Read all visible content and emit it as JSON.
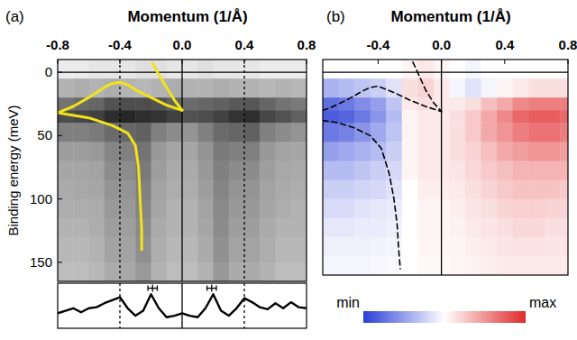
{
  "chart_data": [
    {
      "type": "heatmap",
      "title": "(a)",
      "xlabel": "Momentum (1/Å)",
      "ylabel": "Binding energy (meV)",
      "xlim": [
        -0.8,
        0.8
      ],
      "ylim": [
        165,
        -10
      ],
      "xticks": [
        -0.8,
        -0.4,
        {
          "value": 0,
          "label": "0.0"
        },
        0.4,
        0.8
      ],
      "yticks": [
        0,
        50,
        100,
        150
      ],
      "grid": false,
      "colors": [
        "#ffffff",
        "#000000"
      ],
      "clim": [
        0,
        1
      ],
      "x_edges": [
        -0.8,
        -0.7,
        -0.6,
        -0.5,
        -0.4,
        -0.3,
        -0.2,
        -0.1,
        0.0,
        0.1,
        0.2,
        0.3,
        0.4,
        0.5,
        0.6,
        0.7,
        0.8
      ],
      "y_edges": [
        -10,
        5,
        20,
        30,
        40,
        55,
        70,
        85,
        100,
        115,
        130,
        150,
        165
      ],
      "cells": [
        [
          0.08,
          0.08,
          0.1,
          0.1,
          0.1,
          0.12,
          0.12,
          0.1,
          0.1,
          0.12,
          0.1,
          0.1,
          0.1,
          0.08,
          0.08,
          0.08
        ],
        [
          0.3,
          0.32,
          0.3,
          0.32,
          0.3,
          0.28,
          0.3,
          0.32,
          0.3,
          0.3,
          0.32,
          0.3,
          0.3,
          0.28,
          0.3,
          0.28
        ],
        [
          0.55,
          0.58,
          0.6,
          0.68,
          0.7,
          0.7,
          0.68,
          0.62,
          0.58,
          0.6,
          0.62,
          0.65,
          0.66,
          0.6,
          0.55,
          0.52
        ],
        [
          0.7,
          0.72,
          0.75,
          0.82,
          0.85,
          0.82,
          0.8,
          0.75,
          0.68,
          0.7,
          0.74,
          0.8,
          0.82,
          0.72,
          0.68,
          0.62
        ],
        [
          0.5,
          0.5,
          0.52,
          0.58,
          0.6,
          0.62,
          0.5,
          0.45,
          0.42,
          0.5,
          0.58,
          0.6,
          0.62,
          0.5,
          0.45,
          0.42
        ],
        [
          0.38,
          0.38,
          0.4,
          0.48,
          0.5,
          0.55,
          0.4,
          0.35,
          0.35,
          0.42,
          0.52,
          0.5,
          0.5,
          0.4,
          0.36,
          0.35
        ],
        [
          0.35,
          0.35,
          0.36,
          0.45,
          0.45,
          0.52,
          0.38,
          0.33,
          0.33,
          0.4,
          0.5,
          0.45,
          0.45,
          0.38,
          0.34,
          0.33
        ],
        [
          0.33,
          0.34,
          0.35,
          0.42,
          0.42,
          0.5,
          0.36,
          0.32,
          0.32,
          0.38,
          0.48,
          0.42,
          0.42,
          0.36,
          0.33,
          0.32
        ],
        [
          0.32,
          0.32,
          0.33,
          0.4,
          0.4,
          0.48,
          0.35,
          0.3,
          0.3,
          0.36,
          0.46,
          0.4,
          0.4,
          0.35,
          0.32,
          0.3
        ],
        [
          0.3,
          0.3,
          0.32,
          0.38,
          0.38,
          0.46,
          0.33,
          0.3,
          0.3,
          0.35,
          0.45,
          0.38,
          0.38,
          0.33,
          0.3,
          0.3
        ],
        [
          0.28,
          0.28,
          0.3,
          0.36,
          0.36,
          0.44,
          0.32,
          0.28,
          0.28,
          0.33,
          0.43,
          0.36,
          0.36,
          0.32,
          0.28,
          0.28
        ],
        [
          0.26,
          0.26,
          0.28,
          0.33,
          0.34,
          0.4,
          0.3,
          0.26,
          0.26,
          0.3,
          0.4,
          0.33,
          0.33,
          0.3,
          0.26,
          0.26
        ]
      ],
      "vlines": [
        {
          "value": -0.4,
          "line_style": "dashed"
        },
        {
          "value": 0,
          "line_style": "solid"
        },
        {
          "value": 0.4,
          "line_style": "dashed"
        }
      ],
      "hlines": [
        {
          "value": 0,
          "line_style": "solid"
        }
      ],
      "curves": [
        {
          "color": "#f2e318",
          "line_style": "solid",
          "x": [
            -0.8,
            -0.7,
            -0.6,
            -0.5,
            -0.45,
            -0.4,
            -0.35,
            -0.3,
            -0.2,
            -0.1,
            0.0
          ],
          "y": [
            32,
            27,
            20,
            12,
            9,
            8,
            10,
            14,
            20,
            26,
            30
          ]
        },
        {
          "color": "#f2e318",
          "line_style": "solid",
          "x": [
            -0.8,
            -0.6,
            -0.45,
            -0.35,
            -0.3,
            -0.28,
            -0.27,
            -0.26,
            -0.26
          ],
          "y": [
            32,
            36,
            42,
            48,
            58,
            75,
            100,
            125,
            140
          ]
        },
        {
          "color": "#f2e318",
          "line_style": "solid",
          "x": [
            -0.19,
            -0.15,
            -0.1,
            -0.05,
            0.0
          ],
          "y": [
            -7,
            2,
            12,
            22,
            30
          ]
        }
      ]
    },
    {
      "type": "line",
      "xlim": [
        -0.8,
        0.8
      ],
      "ylim": [
        0.2,
        1.1
      ],
      "tick_labels": false,
      "grid": false,
      "color": "#000000",
      "x": [
        -0.8,
        -0.75,
        -0.7,
        -0.65,
        -0.6,
        -0.55,
        -0.5,
        -0.45,
        -0.4,
        -0.35,
        -0.3,
        -0.25,
        -0.2,
        -0.15,
        -0.1,
        -0.05,
        0.0,
        0.05,
        0.1,
        0.15,
        0.2,
        0.25,
        0.3,
        0.35,
        0.4,
        0.45,
        0.5,
        0.55,
        0.6,
        0.65,
        0.7,
        0.75,
        0.8
      ],
      "values": [
        0.5,
        0.55,
        0.6,
        0.52,
        0.6,
        0.62,
        0.7,
        0.76,
        0.82,
        0.6,
        0.45,
        0.55,
        0.88,
        0.6,
        0.42,
        0.45,
        0.5,
        0.45,
        0.42,
        0.6,
        0.88,
        0.55,
        0.45,
        0.6,
        0.8,
        0.72,
        0.62,
        0.58,
        0.7,
        0.6,
        0.72,
        0.62,
        0.6
      ],
      "peaks": {
        "x": [
          -0.19,
          0.19
        ],
        "values": [
          1.0,
          1.0
        ],
        "errors": [
          0.03,
          0.03
        ]
      },
      "vlines": [
        {
          "value": -0.4,
          "line_style": "dashed"
        },
        {
          "value": 0,
          "line_style": "solid"
        },
        {
          "value": 0.4,
          "line_style": "dashed"
        }
      ]
    },
    {
      "type": "heatmap",
      "title": "(b)",
      "xlabel": "Momentum (1/Å)",
      "xlim": [
        -0.75,
        0.8
      ],
      "ylim": [
        160,
        -10
      ],
      "xticks": [
        -0.4,
        {
          "value": 0,
          "label": "0.0"
        },
        0.4,
        0.8
      ],
      "tick_labels": "x",
      "grid": false,
      "colors": [
        "#2b3fd6",
        "#ffffff",
        "#e0282a"
      ],
      "clim": [
        -1,
        1
      ],
      "colorbar_ticks": [
        {
          "value": -1,
          "label": "min"
        },
        {
          "value": 1,
          "label": "max"
        }
      ],
      "x_edges": [
        -0.75,
        -0.65,
        -0.55,
        -0.45,
        -0.35,
        -0.25,
        -0.15,
        -0.05,
        0.05,
        0.15,
        0.25,
        0.35,
        0.45,
        0.55,
        0.65,
        0.75,
        0.8
      ],
      "y_edges": [
        -10,
        5,
        20,
        30,
        40,
        55,
        70,
        85,
        100,
        115,
        130,
        145,
        160
      ],
      "cells": [
        [
          0,
          0,
          0,
          0,
          0,
          0.05,
          0.1,
          0.05,
          0,
          -0.05,
          0,
          0,
          0,
          0,
          0,
          0
        ],
        [
          -0.4,
          -0.35,
          -0.3,
          -0.25,
          -0.15,
          0.15,
          0.2,
          0.1,
          -0.05,
          -0.15,
          -0.05,
          0.05,
          0.1,
          0.15,
          0.15,
          0.15
        ],
        [
          -0.75,
          -0.7,
          -0.6,
          -0.5,
          -0.3,
          0.1,
          0.15,
          0.1,
          0.1,
          0.15,
          0.3,
          0.4,
          0.55,
          0.6,
          0.6,
          0.6
        ],
        [
          -0.85,
          -0.8,
          -0.7,
          -0.55,
          -0.35,
          0.05,
          0.1,
          0.1,
          0.15,
          0.25,
          0.4,
          0.55,
          0.7,
          0.75,
          0.75,
          0.7
        ],
        [
          -0.7,
          -0.65,
          -0.55,
          -0.45,
          -0.3,
          0.05,
          0.1,
          0.1,
          0.15,
          0.25,
          0.4,
          0.5,
          0.6,
          0.65,
          0.65,
          0.6
        ],
        [
          -0.5,
          -0.45,
          -0.4,
          -0.35,
          -0.25,
          0.05,
          0.1,
          0.1,
          0.15,
          0.2,
          0.3,
          0.4,
          0.45,
          0.5,
          0.5,
          0.45
        ],
        [
          -0.35,
          -0.35,
          -0.3,
          -0.25,
          -0.2,
          0.05,
          0.1,
          0.1,
          0.12,
          0.18,
          0.25,
          0.3,
          0.35,
          0.35,
          0.35,
          0.35
        ],
        [
          -0.25,
          -0.25,
          -0.22,
          -0.2,
          -0.15,
          0,
          0.08,
          0.08,
          0.1,
          0.15,
          0.2,
          0.25,
          0.28,
          0.28,
          0.28,
          0.25
        ],
        [
          -0.18,
          -0.18,
          -0.15,
          -0.12,
          -0.1,
          0,
          0.05,
          0.05,
          0.08,
          0.12,
          0.15,
          0.2,
          0.22,
          0.22,
          0.2,
          0.2
        ],
        [
          -0.12,
          -0.12,
          -0.1,
          -0.1,
          -0.08,
          0,
          0.05,
          0.05,
          0.06,
          0.1,
          0.12,
          0.15,
          0.18,
          0.18,
          0.15,
          0.15
        ],
        [
          -0.08,
          -0.08,
          -0.08,
          -0.06,
          -0.05,
          0,
          0.04,
          0.04,
          0.05,
          0.08,
          0.1,
          0.12,
          0.14,
          0.14,
          0.12,
          0.12
        ],
        [
          -0.05,
          -0.05,
          -0.05,
          -0.04,
          -0.03,
          0,
          0.03,
          0.03,
          0.04,
          0.06,
          0.08,
          0.1,
          0.1,
          0.1,
          0.1,
          0.1
        ]
      ],
      "vlines": [
        {
          "value": 0,
          "line_style": "solid"
        }
      ],
      "hlines": [
        {
          "value": 0,
          "line_style": "solid"
        }
      ],
      "curves": [
        {
          "color": "#000000",
          "line_style": "dashed",
          "x": [
            -0.75,
            -0.7,
            -0.6,
            -0.5,
            -0.45,
            -0.4,
            -0.3,
            -0.2,
            -0.1,
            0.0
          ],
          "y": [
            30,
            28,
            22,
            15,
            12,
            11,
            16,
            22,
            27,
            31
          ]
        },
        {
          "color": "#000000",
          "line_style": "dashed",
          "x": [
            -0.75,
            -0.65,
            -0.55,
            -0.45,
            -0.38,
            -0.33,
            -0.3,
            -0.28,
            -0.27,
            -0.26
          ],
          "y": [
            38,
            40,
            44,
            50,
            60,
            80,
            100,
            120,
            140,
            155
          ]
        },
        {
          "color": "#000000",
          "line_style": "dashed",
          "x": [
            -0.18,
            -0.14,
            -0.1,
            -0.05,
            0.0
          ],
          "y": [
            -8,
            3,
            14,
            24,
            31
          ]
        }
      ]
    }
  ]
}
